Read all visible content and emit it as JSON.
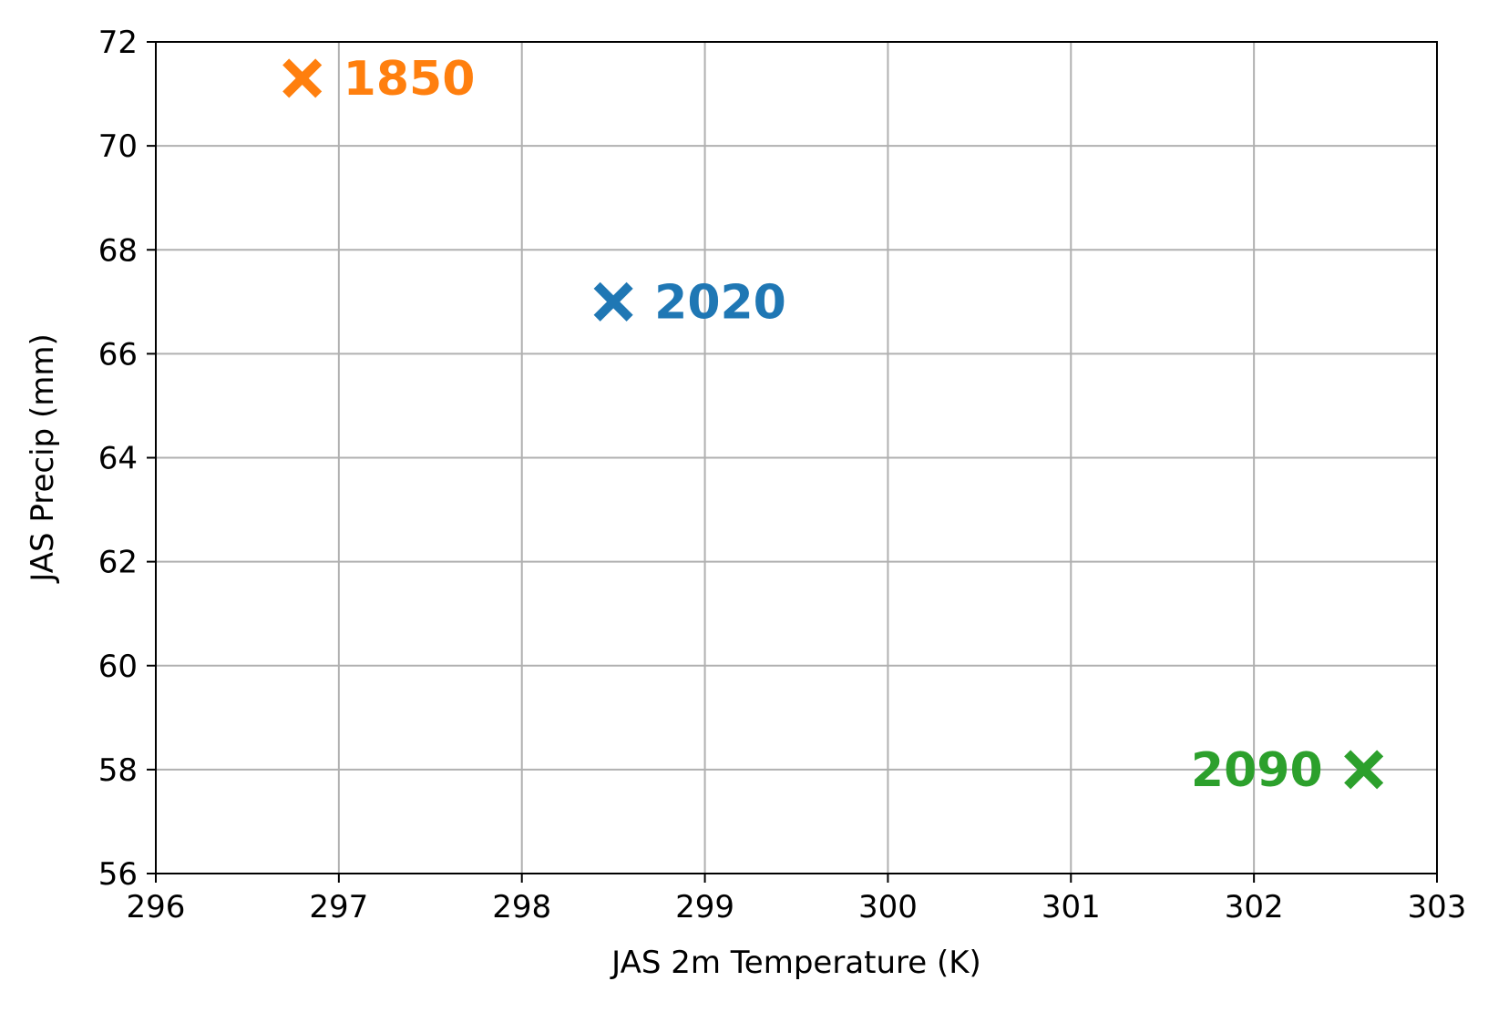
{
  "chart_data": {
    "type": "scatter",
    "title": "",
    "xlabel": "JAS 2m Temperature (K)",
    "ylabel": "JAS Precip (mm)",
    "xlim": [
      296,
      303
    ],
    "ylim": [
      56,
      72
    ],
    "xticks": [
      "296",
      "297",
      "298",
      "299",
      "300",
      "301",
      "302",
      "303"
    ],
    "yticks": [
      "56",
      "58",
      "60",
      "62",
      "64",
      "66",
      "68",
      "70",
      "72"
    ],
    "grid": true,
    "marker": "x",
    "points": [
      {
        "label": "1850",
        "x": 296.8,
        "y": 71.3,
        "color": "#ff7f0e",
        "label_side": "right"
      },
      {
        "label": "2020",
        "x": 298.5,
        "y": 67.0,
        "color": "#1f77b4",
        "label_side": "right"
      },
      {
        "label": "2090",
        "x": 302.6,
        "y": 58.0,
        "color": "#2ca02c",
        "label_side": "left"
      }
    ]
  }
}
